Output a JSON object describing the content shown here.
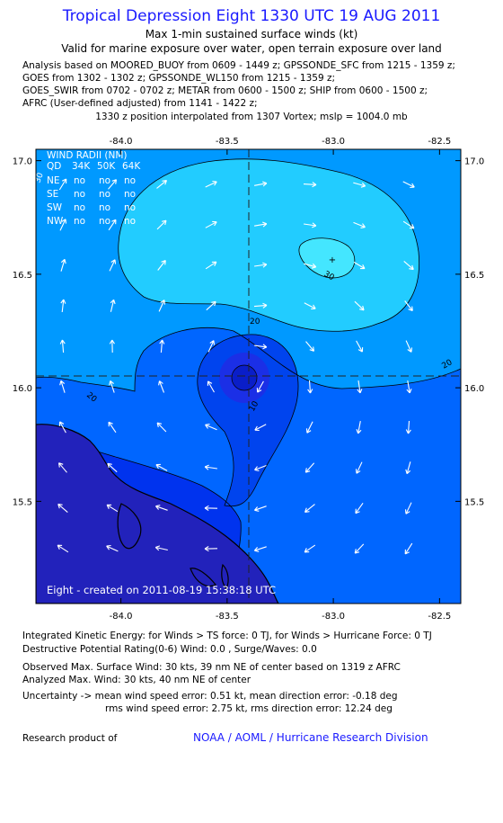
{
  "header": {
    "title": "Tropical Depression Eight 1330 UTC 19 AUG 2011",
    "subtitle1": "Max 1-min sustained surface winds (kt)",
    "subtitle2": "Valid for marine exposure over water, open terrain exposure over land",
    "analysis_lines": [
      "Analysis based on MOORED_BUOY from 0609 - 1449 z; GPSSONDE_SFC from 1215 - 1359 z;",
      "GOES from 1302 - 1302 z; GPSSONDE_WL150 from 1215 - 1359 z;",
      "GOES_SWIR from 0702 - 0702 z; METAR from 0600 - 1500 z; SHIP from 0600 - 1500 z;",
      "AFRC (User-defined adjusted) from 1141 - 1422 z;"
    ],
    "position_line": "1330 z position interpolated from 1307 Vortex; mslp = 1004.0 mb"
  },
  "map": {
    "lon_labels": [
      "-84.0",
      "-83.5",
      "-83.0",
      "-82.5"
    ],
    "lon_values": [
      -84.0,
      -83.5,
      -83.0,
      -82.5
    ],
    "lat_labels": [
      "17.0",
      "16.5",
      "16.0",
      "15.5"
    ],
    "lat_values": [
      17.0,
      16.5,
      16.0,
      15.5
    ],
    "lon_range": [
      -84.4,
      -82.4
    ],
    "lat_range": [
      15.05,
      17.05
    ],
    "center": {
      "lon": -83.43,
      "lat": 16.06
    },
    "contour_labels": [
      "30",
      "20",
      "20",
      "20",
      "10",
      "30"
    ],
    "colors": {
      "lt10": "#0033ee",
      "c10_20": "#0066ff",
      "c20_30": "#0099ff",
      "c30": "#22ccff",
      "core": "#0022dd",
      "land": "#2222bb",
      "coast": "#000000",
      "arrow": "#ffffff",
      "title_blue": "#1a1aff"
    },
    "wind_radii": {
      "title": "WIND RADII (NM)",
      "header": [
        "QD",
        "34K",
        "50K",
        "64K"
      ],
      "rows": [
        [
          "NE",
          "no",
          "no",
          "no"
        ],
        [
          "SE",
          "no",
          "no",
          "no"
        ],
        [
          "SW",
          "no",
          "no",
          "no"
        ],
        [
          "NW",
          "no",
          "no",
          "no"
        ]
      ]
    },
    "created_text": "Eight - created on 2011-08-19 15:38:18 UTC"
  },
  "footer": {
    "ike_line": "Integrated Kinetic Energy:  for Winds > TS force: 0 TJ,  for Winds > Hurricane Force: 0 TJ",
    "dpr_line": "Destructive Potential Rating(0-6)   Wind: 0.0 , Surge/Waves: 0.0",
    "observed_line": "Observed Max. Surface Wind: 30 kts, 39 nm NE of center based on 1319 z AFRC",
    "analyzed_line": "Analyzed Max. Wind: 30 kts, 40 nm NE of center",
    "uncertainty_line1": "Uncertainty -> mean wind speed error: 0.51 kt,   mean direction error:  -0.18 deg",
    "uncertainty_line2": "rms wind speed error: 2.75 kt,   rms direction error: 12.24 deg",
    "research_label": "Research product of",
    "credit": "NOAA / AOML / Hurricane Research Division"
  }
}
